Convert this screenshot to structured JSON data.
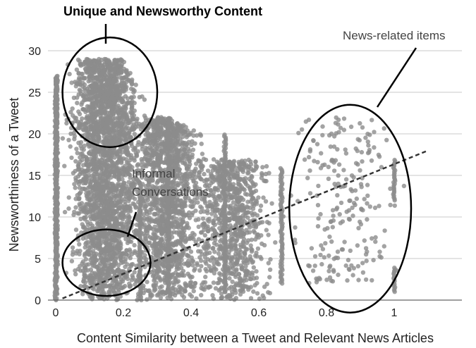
{
  "chart_data": {
    "type": "scatter",
    "title": "",
    "xlabel": "Content Similarity between a Tweet and Relevant News Articles",
    "ylabel": "Newsworthiness of a Tweet",
    "xlim": [
      0,
      1.2
    ],
    "ylim": [
      0,
      30
    ],
    "x_ticks": [
      "0",
      "0.2",
      "0.4",
      "0.6",
      "0.8",
      "1"
    ],
    "y_ticks": [
      "0",
      "5",
      "10",
      "15",
      "20",
      "25",
      "30"
    ],
    "grid": "horizontal",
    "point_color": "#8c8c8c",
    "trendline": {
      "style": "dashed",
      "color": "#333333",
      "x": [
        0.02,
        1.1
      ],
      "y": [
        0.2,
        18
      ]
    },
    "clusters": [
      {
        "x_center": 0.0,
        "x_spread": 0.01,
        "y_min": 0,
        "y_max": 28,
        "count": 500,
        "note": "column at x=0"
      },
      {
        "x_center": 0.15,
        "x_spread": 0.085,
        "y_min": 0,
        "y_max": 30,
        "count": 2600,
        "note": "dense left mass"
      },
      {
        "x_center": 0.33,
        "x_spread": 0.085,
        "y_min": 0,
        "y_max": 22,
        "count": 1500,
        "note": "middle mass"
      },
      {
        "x_center": 0.52,
        "x_spread": 0.09,
        "y_min": 0,
        "y_max": 17,
        "count": 900,
        "note": "right-middle mass"
      },
      {
        "x_center": 0.85,
        "x_spread": 0.13,
        "y_min": 2,
        "y_max": 22,
        "count": 220,
        "note": "sparse news-related"
      }
    ],
    "vertical_bands": [
      {
        "x": 0.0,
        "y_min": 0,
        "y_max": 25
      },
      {
        "x": 0.5,
        "y_min": 1,
        "y_max": 20
      },
      {
        "x": 0.333,
        "y_min": 1,
        "y_max": 22
      },
      {
        "x": 0.25,
        "y_min": 0,
        "y_max": 14
      },
      {
        "x": 0.667,
        "y_min": 2,
        "y_max": 16
      },
      {
        "x": 1.0,
        "y_min": 1,
        "y_max": 4
      },
      {
        "x": 1.0,
        "y_min": 12,
        "y_max": 17
      }
    ],
    "annotations": [
      {
        "text": "Unique and Newsworthy Content",
        "bold": true,
        "ellipse": {
          "cx": 0.16,
          "cy": 25,
          "rx": 0.14,
          "ry": 6.6
        }
      },
      {
        "text_lines": [
          "Informal",
          "Conversations"
        ],
        "bold": false,
        "ellipse": {
          "cx": 0.15,
          "cy": 4.5,
          "rx": 0.13,
          "ry": 4.0
        }
      },
      {
        "text": "News-related items",
        "bold": false,
        "ellipse": {
          "cx": 0.87,
          "cy": 11,
          "rx": 0.18,
          "ry": 12.5
        }
      }
    ]
  }
}
